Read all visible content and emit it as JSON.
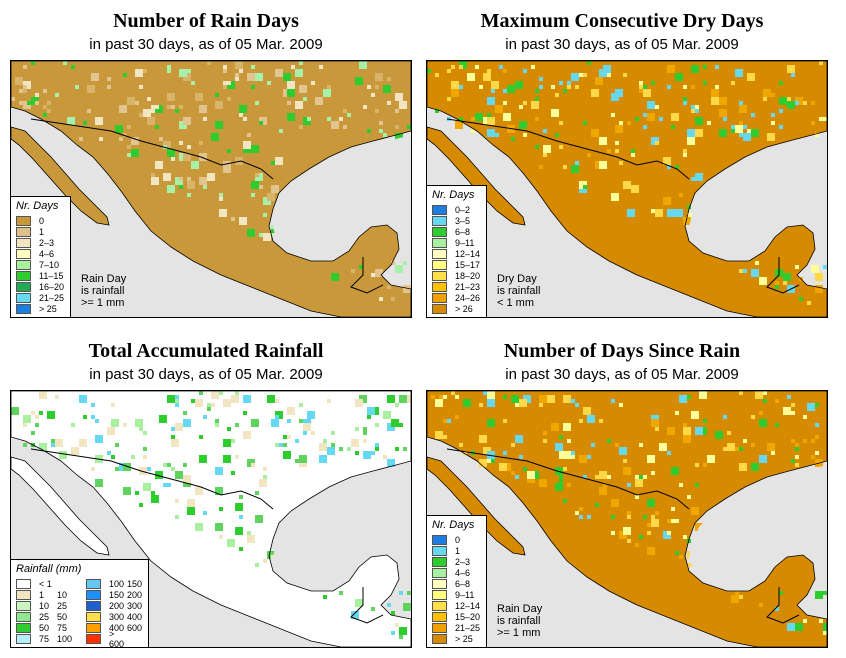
{
  "panels": [
    {
      "title": "Number of Rain Days",
      "subtitle": "in past 30 days, as of  05 Mar. 2009",
      "base_color": "#c9983a",
      "speckle": [
        "#e2c58e",
        "#f2e6c2",
        "#d8b46a",
        "#2ecc2e",
        "#a8f0a8"
      ],
      "legend": {
        "title": "Nr. Days",
        "items": [
          {
            "label": "0",
            "color": "#c9983a"
          },
          {
            "label": "1",
            "color": "#ddc08a"
          },
          {
            "label": "2–3",
            "color": "#f2e6c2"
          },
          {
            "label": "4–6",
            "color": "#ffffc0"
          },
          {
            "label": "7–10",
            "color": "#a8f0a0"
          },
          {
            "label": "11–15",
            "color": "#2ecc2e"
          },
          {
            "label": "16–20",
            "color": "#22aa55"
          },
          {
            "label": "21–25",
            "color": "#66d8f0"
          },
          {
            "label": "> 25",
            "color": "#1e7ee0"
          }
        ]
      },
      "note": [
        "Rain Day",
        "is rainfall",
        ">= 1 mm"
      ]
    },
    {
      "title": "Maximum Consecutive Dry Days",
      "subtitle": "in past 30 days, as of  05 Mar. 2009",
      "base_color": "#d68a00",
      "speckle": [
        "#f0a800",
        "#ffd84a",
        "#ffff99",
        "#2ecc2e",
        "#66d8f0"
      ],
      "legend": {
        "title": "Nr. Days",
        "items": [
          {
            "label": "0–2",
            "color": "#1e7ee0"
          },
          {
            "label": "3–5",
            "color": "#66d8f0"
          },
          {
            "label": "6–8",
            "color": "#2ecc2e"
          },
          {
            "label": "9–11",
            "color": "#a8f0a0"
          },
          {
            "label": "12–14",
            "color": "#ffffc0"
          },
          {
            "label": "15–17",
            "color": "#ffff80"
          },
          {
            "label": "18–20",
            "color": "#ffe04a"
          },
          {
            "label": "21–23",
            "color": "#ffc000"
          },
          {
            "label": "24–26",
            "color": "#f0a000"
          },
          {
            "label": "> 26",
            "color": "#d68a00"
          }
        ]
      },
      "note": [
        "Dry Day",
        "is rainfall",
        "< 1 mm"
      ]
    },
    {
      "title": "Total Accumulated Rainfall",
      "subtitle": "in past 30 days, as of  05 Mar. 2009",
      "base_color": "#ffffff",
      "speckle": [
        "#f2e6c2",
        "#a8f0a0",
        "#5ed35e",
        "#2ecc2e",
        "#66d8f0"
      ],
      "legend": {
        "title": "Rainfall (mm)",
        "items_left": [
          {
            "from": "< 1",
            "to": "",
            "color": "#ffffff"
          },
          {
            "from": "1",
            "to": "10",
            "color": "#f2e6c2"
          },
          {
            "from": "10",
            "to": "25",
            "color": "#c8f5c0"
          },
          {
            "from": "25",
            "to": "50",
            "color": "#8ee88e"
          },
          {
            "from": "50",
            "to": "75",
            "color": "#2ecc2e"
          },
          {
            "from": "75",
            "to": "100",
            "color": "#b8eef8"
          }
        ],
        "items_right": [
          {
            "from": "100",
            "to": "150",
            "color": "#66c8f0"
          },
          {
            "from": "150",
            "to": "200",
            "color": "#1e90ff"
          },
          {
            "from": "200",
            "to": "300",
            "color": "#1e60d0"
          },
          {
            "from": "300",
            "to": "400",
            "color": "#ffe04a"
          },
          {
            "from": "400",
            "to": "600",
            "color": "#ffa000"
          },
          {
            "from": "> 600",
            "to": "",
            "color": "#ff3000"
          }
        ]
      }
    },
    {
      "title": "Number of Days Since Rain",
      "subtitle": "in past 30 days, as of  05 Mar. 2009",
      "base_color": "#d68a00",
      "speckle": [
        "#f0a800",
        "#ffd84a",
        "#ffff99",
        "#2ecc2e",
        "#66d8f0"
      ],
      "legend": {
        "title": "Nr. Days",
        "items": [
          {
            "label": "0",
            "color": "#1e7ee0"
          },
          {
            "label": "1",
            "color": "#66d8f0"
          },
          {
            "label": "2–3",
            "color": "#2ecc2e"
          },
          {
            "label": "4–6",
            "color": "#a8f0a0"
          },
          {
            "label": "6–8",
            "color": "#ffffc0"
          },
          {
            "label": "9–11",
            "color": "#ffff80"
          },
          {
            "label": "12–14",
            "color": "#ffe04a"
          },
          {
            "label": "15–20",
            "color": "#ffc000"
          },
          {
            "label": "21–25",
            "color": "#f0a000"
          },
          {
            "label": "> 25",
            "color": "#d68a00"
          }
        ]
      },
      "note": [
        "Rain Day",
        "is rainfall",
        ">= 1 mm"
      ]
    }
  ],
  "colors": {
    "ocean": "#e4e4e4",
    "border": "#000000"
  }
}
